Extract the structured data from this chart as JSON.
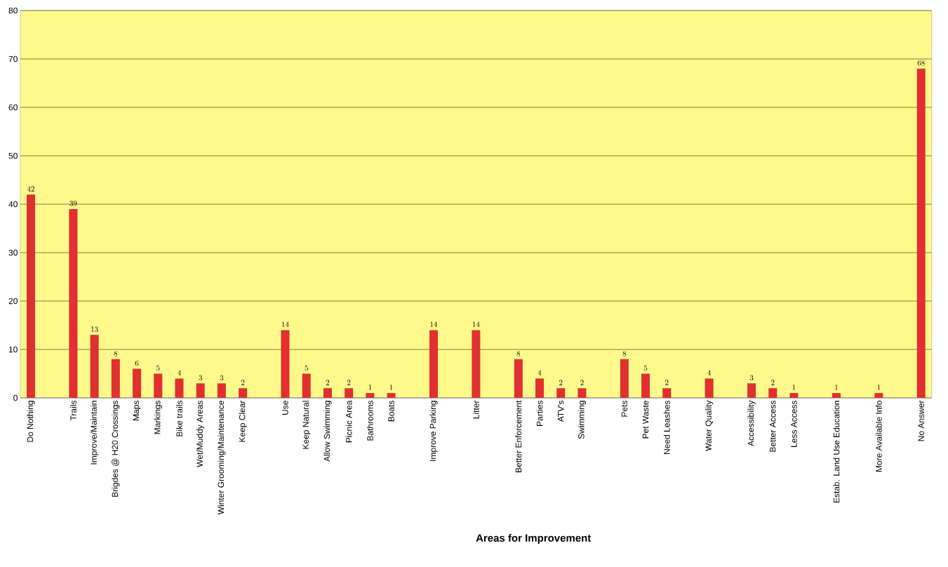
{
  "chart_data": {
    "type": "bar",
    "xlabel": "Areas for Improvement",
    "categories": [
      "Do Nothing",
      null,
      "Trails",
      "Improve/Maintain",
      "Brigdes @ H20 Crossings",
      "Maps",
      "Markings",
      "Bike trails",
      "Wet/Muddy Areas",
      "Winter Grooming/Maintenance",
      "Keep Clear",
      null,
      "Use",
      "Keep Natural",
      "Allow Swimming",
      "Picnic Area",
      "Bathrooms",
      "Boats",
      null,
      "Improve Parking",
      null,
      "Litter",
      null,
      "Better Enforcement",
      "Parties",
      "ATV's",
      "Swimming",
      null,
      "Pets",
      "Pet Waste",
      "Need Leashes",
      null,
      "Water Quality",
      null,
      "Accessibility",
      "Better Access",
      "Less Access",
      null,
      "Estab. Land Use Education",
      null,
      "More Available Info",
      null,
      "No Answer"
    ],
    "values": [
      42,
      null,
      39,
      13,
      8,
      6,
      5,
      4,
      3,
      3,
      2,
      null,
      14,
      5,
      2,
      2,
      1,
      1,
      null,
      14,
      null,
      14,
      null,
      8,
      4,
      2,
      2,
      null,
      8,
      5,
      2,
      null,
      4,
      null,
      3,
      2,
      1,
      null,
      1,
      null,
      1,
      null,
      68
    ],
    "color": "#e03030",
    "ylim": [
      0,
      80
    ],
    "yticks": [
      0,
      10,
      20,
      30,
      40,
      50,
      60,
      70,
      80
    ],
    "grid": "y",
    "data_labels": true
  }
}
